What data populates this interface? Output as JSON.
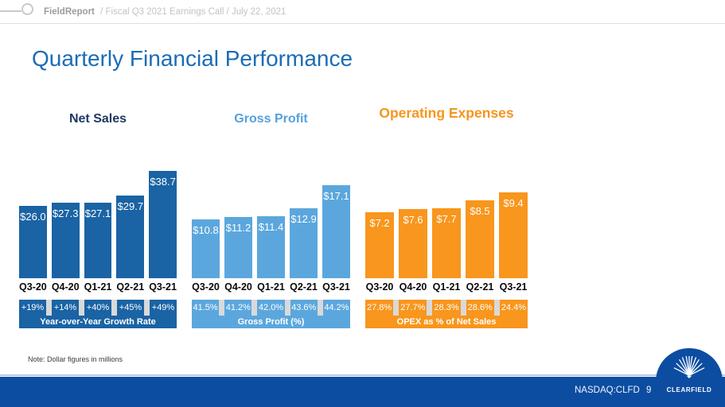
{
  "header": {
    "brand": "FieldReport",
    "subtitle": "/  Fiscal Q3 2021 Earnings Call / July 22, 2021"
  },
  "title": "Quarterly Financial Performance",
  "note": "Note: Dollar figures in millions",
  "footer": {
    "ticker": "NASDAQ:CLFD",
    "page_number": "9",
    "logo_text": "CLEARFIELD"
  },
  "colors": {
    "page_title": "#1b6cb5",
    "footer_bar": "#0c4da2",
    "separator_gray": "#d9d9d9"
  },
  "chart_data": [
    {
      "type": "bar",
      "title": "Net Sales",
      "title_color": "#1f3864",
      "bar_color": "#1a63a4",
      "categories": [
        "Q3-20",
        "Q4-20",
        "Q1-21",
        "Q2-21",
        "Q3-21"
      ],
      "values": [
        26.0,
        27.3,
        27.1,
        29.7,
        38.7
      ],
      "value_labels": [
        "$26.0",
        "$27.3",
        "$27.1",
        "$29.7",
        "$38.7"
      ],
      "footer_values": [
        "+19%",
        "+14%",
        "+40%",
        "+45%",
        "+49%"
      ],
      "footer_label": "Year-over-Year Growth Rate"
    },
    {
      "type": "bar",
      "title": "Gross Profit",
      "title_color": "#54a1dc",
      "bar_color": "#5ba7dd",
      "categories": [
        "Q3-20",
        "Q4-20",
        "Q1-21",
        "Q2-21",
        "Q3-21"
      ],
      "values": [
        10.8,
        11.2,
        11.4,
        12.9,
        17.1
      ],
      "value_labels": [
        "$10.8",
        "$11.2",
        "$11.4",
        "$12.9",
        "$17.1"
      ],
      "footer_values": [
        "41.5%",
        "41.2%",
        "42.0%",
        "43.6%",
        "44.2%"
      ],
      "footer_label": "Gross Profit (%)"
    },
    {
      "type": "bar",
      "title": "Operating Expenses",
      "title_color": "#f8941d",
      "bar_color": "#f8961d",
      "categories": [
        "Q3-20",
        "Q4-20",
        "Q1-21",
        "Q2-21",
        "Q3-21"
      ],
      "values": [
        7.2,
        7.6,
        7.7,
        8.5,
        9.4
      ],
      "value_labels": [
        "$7.2",
        "$7.6",
        "$7.7",
        "$8.5",
        "$9.4"
      ],
      "footer_values": [
        "27.8%",
        "27.7%",
        "28.3%",
        "28.6%",
        "24.4%"
      ],
      "footer_label": "OPEX as % of Net Sales"
    }
  ]
}
